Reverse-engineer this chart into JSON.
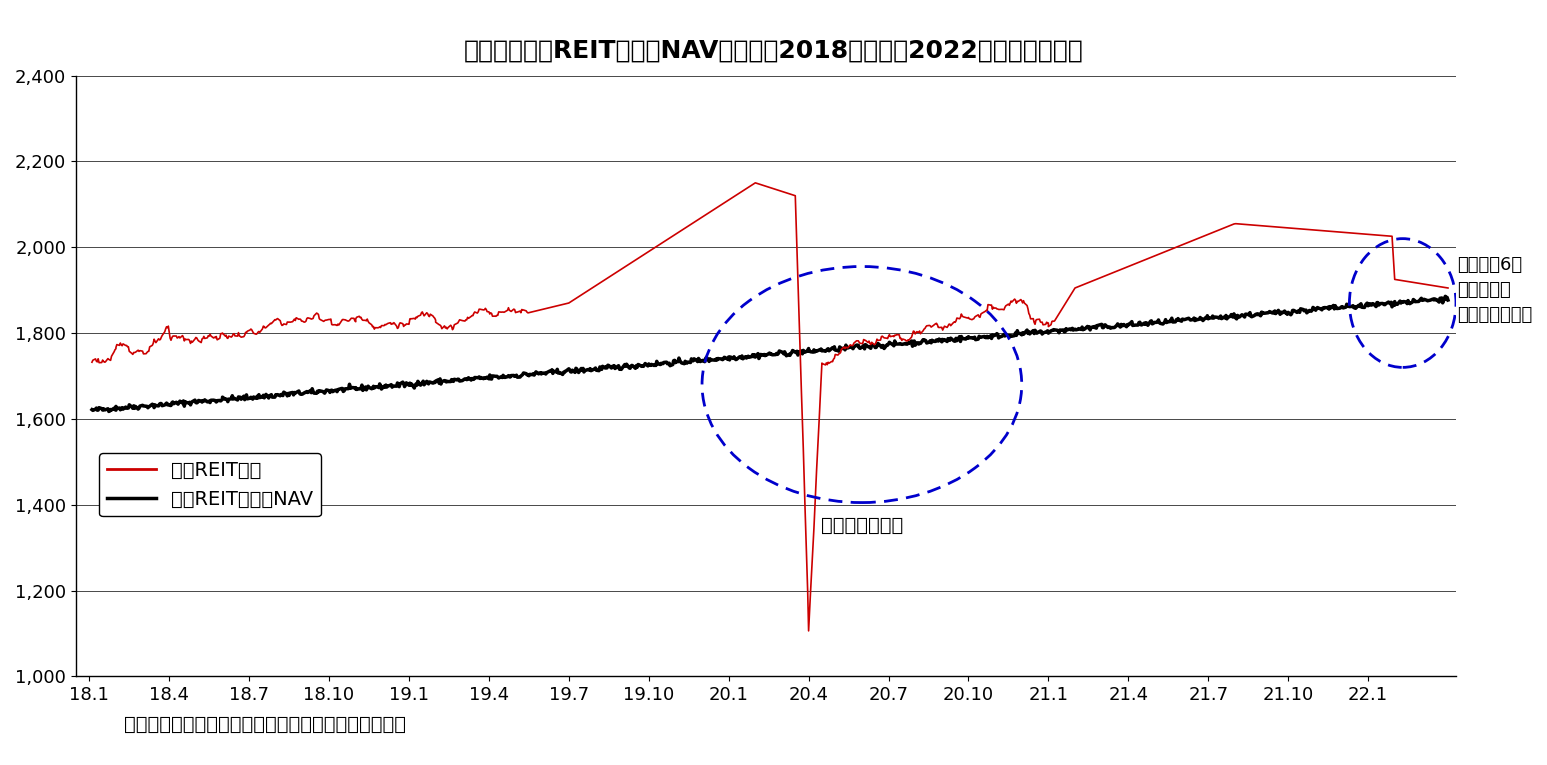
{
  "title": "図表１：東証REIT指数とNAVの推移（2018年１月～2022年３月、日次）",
  "source_text": "（資料）開示資料をもとにニッセイ基礎研究所が作成",
  "legend_reit": "東証REIT指数",
  "legend_nav": "東証REIT指数のNAV",
  "annotation_corona": "コロナショック",
  "annotation_corona2_line1": "コロナ第6波",
  "annotation_corona2_line2": "米国利上げ",
  "annotation_corona2_line3": "ウクライナ侵攻",
  "ylim": [
    1000,
    2400
  ],
  "yticks": [
    1000,
    1200,
    1400,
    1600,
    1800,
    2000,
    2200,
    2400
  ],
  "reit_color": "#CC0000",
  "nav_color": "#000000",
  "ellipse_color": "#0000CC",
  "background_color": "#FFFFFF",
  "title_fontsize": 18,
  "axis_fontsize": 13,
  "source_fontsize": 14
}
